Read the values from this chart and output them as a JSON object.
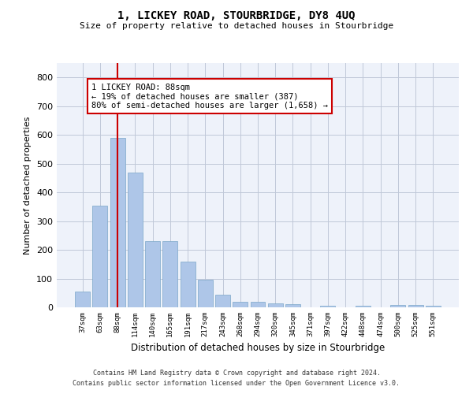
{
  "title": "1, LICKEY ROAD, STOURBRIDGE, DY8 4UQ",
  "subtitle": "Size of property relative to detached houses in Stourbridge",
  "xlabel": "Distribution of detached houses by size in Stourbridge",
  "ylabel": "Number of detached properties",
  "categories": [
    "37sqm",
    "63sqm",
    "88sqm",
    "114sqm",
    "140sqm",
    "165sqm",
    "191sqm",
    "217sqm",
    "243sqm",
    "268sqm",
    "294sqm",
    "320sqm",
    "345sqm",
    "371sqm",
    "397sqm",
    "422sqm",
    "448sqm",
    "474sqm",
    "500sqm",
    "525sqm",
    "551sqm"
  ],
  "values": [
    55,
    355,
    590,
    470,
    230,
    230,
    160,
    95,
    45,
    18,
    18,
    13,
    10,
    0,
    5,
    0,
    5,
    0,
    8,
    8,
    5
  ],
  "bar_color": "#aec6e8",
  "bar_edge_color": "#7ba7c9",
  "highlight_index": 2,
  "red_line_color": "#cc0000",
  "ylim": [
    0,
    850
  ],
  "yticks": [
    0,
    100,
    200,
    300,
    400,
    500,
    600,
    700,
    800
  ],
  "annotation_text": "1 LICKEY ROAD: 88sqm\n← 19% of detached houses are smaller (387)\n80% of semi-detached houses are larger (1,658) →",
  "annotation_box_color": "#ffffff",
  "annotation_box_edge": "#cc0000",
  "footer1": "Contains HM Land Registry data © Crown copyright and database right 2024.",
  "footer2": "Contains public sector information licensed under the Open Government Licence v3.0.",
  "background_color": "#eef2fa",
  "grid_color": "#c0c8d8"
}
